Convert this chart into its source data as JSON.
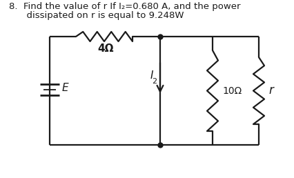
{
  "title_line1": "8.  Find the value of r If I₂=0.680 A, and the power",
  "title_line2": "      dissipated on r is equal to 9.248W",
  "bg_color": "#ffffff",
  "line_color": "#1a1a1a",
  "text_color": "#1a1a1a",
  "font_size_title": 9.5,
  "font_size_labels": 10,
  "resistor_4_label": "4Ω",
  "resistor_10_label": "10Ω",
  "resistor_r_label": "r",
  "current_label": "I",
  "current_sub": "2",
  "battery_label": "E",
  "lw": 1.6
}
